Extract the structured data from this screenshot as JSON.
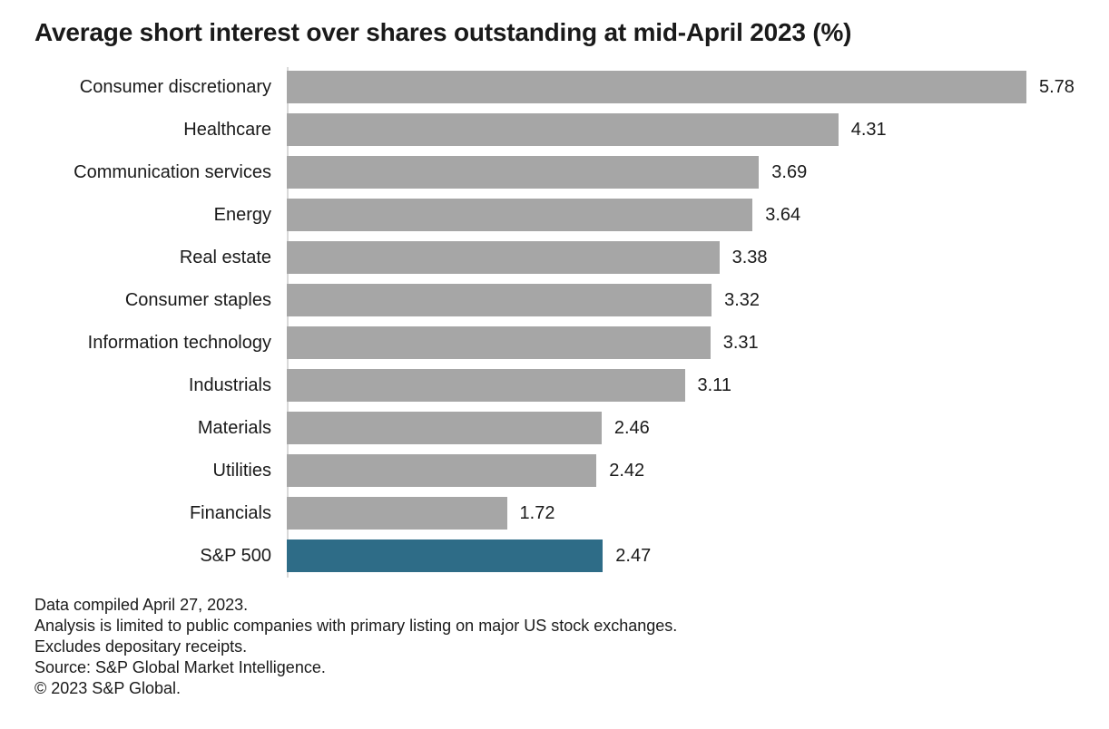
{
  "title": "Average short interest over shares outstanding at mid-April 2023 (%)",
  "chart_data": {
    "type": "bar",
    "orientation": "horizontal",
    "title": "Average short interest over shares outstanding at mid-April 2023 (%)",
    "categories": [
      "Consumer discretionary",
      "Healthcare",
      "Communication services",
      "Energy",
      "Real estate",
      "Consumer staples",
      "Information technology",
      "Industrials",
      "Materials",
      "Utilities",
      "Financials",
      "S&P 500"
    ],
    "values": [
      5.78,
      4.31,
      3.69,
      3.64,
      3.38,
      3.32,
      3.31,
      3.11,
      2.46,
      2.42,
      1.72,
      2.47
    ],
    "value_labels": [
      "5.78",
      "4.31",
      "3.69",
      "3.64",
      "3.38",
      "3.32",
      "3.31",
      "3.11",
      "2.46",
      "2.42",
      "1.72",
      "2.47"
    ],
    "highlight_category": "S&P 500",
    "bar_color": "#a6a6a6",
    "highlight_color": "#2e6c87",
    "axis_color": "#d9d9d9",
    "xlim": [
      0,
      6.2
    ],
    "grid": false,
    "legend": false,
    "value_label_position": "end-of-bar"
  },
  "footnotes": [
    "Data compiled April 27, 2023.",
    "Analysis is limited to public companies with primary listing on major US stock exchanges.",
    "Excludes depositary receipts.",
    "Source: S&P Global Market Intelligence.",
    "© 2023 S&P Global."
  ]
}
